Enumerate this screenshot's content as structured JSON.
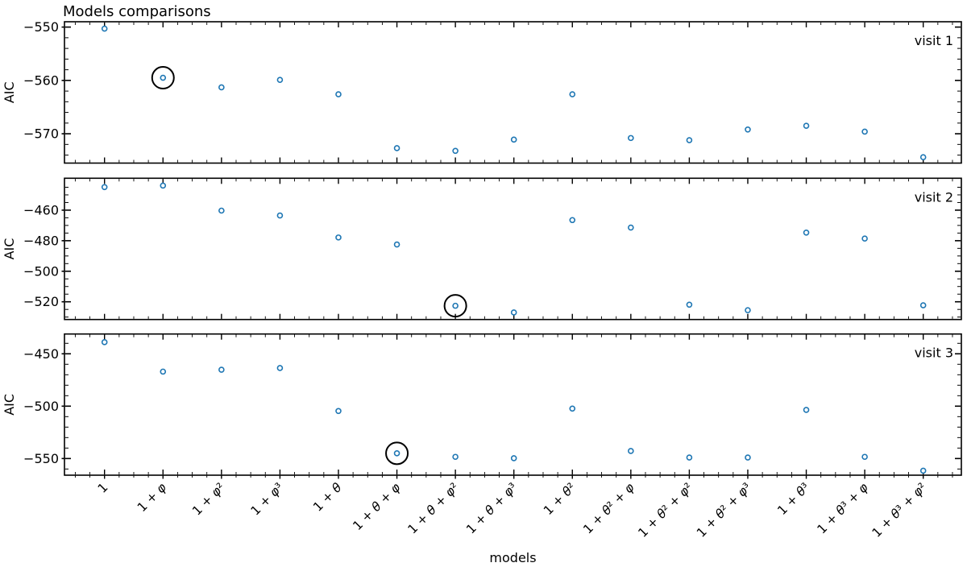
{
  "chart_data": {
    "type": "scatter",
    "title": "Models comparisons",
    "xlabel": "models",
    "ylabel": "AIC",
    "marker_color": "#1f77b4",
    "annotation_color": "#000000",
    "grid": false,
    "categories": [
      "1",
      "1 + φ",
      "1 + φ²",
      "1 + φ³",
      "1 + θ",
      "1 + θ + φ",
      "1 + θ + φ²",
      "1 + θ + φ³",
      "1 + θ²",
      "1 + θ² + φ",
      "1 + θ² + φ²",
      "1 + θ² + φ³",
      "1 + θ³",
      "1 + θ³ + φ",
      "1 + θ³ + φ²"
    ],
    "subplots": [
      {
        "label": "visit 1",
        "values": [
          -550.3,
          -559.5,
          -561.3,
          -559.9,
          -562.6,
          -572.7,
          -573.2,
          -571.1,
          -562.6,
          -570.8,
          -571.2,
          -569.2,
          -568.5,
          -569.6,
          -574.4
        ],
        "circled_index": 1,
        "circled_model": "1 + φ",
        "yticks": [
          -550,
          -560,
          -570
        ],
        "minor_step": 2,
        "ylim": [
          -575.5,
          -549.0
        ]
      },
      {
        "label": "visit 2",
        "values": [
          -444.9,
          -443.9,
          -460.3,
          -463.5,
          -477.9,
          -482.5,
          -522.6,
          -527.0,
          -466.5,
          -471.4,
          -521.9,
          -525.5,
          -474.7,
          -478.6,
          -522.3
        ],
        "circled_index": 6,
        "circled_model": "1 + θ + φ²",
        "yticks": [
          -460,
          -480,
          -500,
          -520
        ],
        "minor_step": 5,
        "ylim": [
          -531.6,
          -439.1
        ]
      },
      {
        "label": "visit 3",
        "values": [
          -438.9,
          -467.0,
          -465.2,
          -463.6,
          -504.6,
          -545.0,
          -548.4,
          -549.7,
          -502.3,
          -542.8,
          -549.0,
          -549.0,
          -503.6,
          -548.4,
          -561.6
        ],
        "circled_index": 5,
        "circled_model": "1 + θ + φ",
        "yticks": [
          -450,
          -500,
          -550
        ],
        "minor_step": 10,
        "ylim": [
          -565.9,
          -431.1
        ]
      }
    ]
  }
}
